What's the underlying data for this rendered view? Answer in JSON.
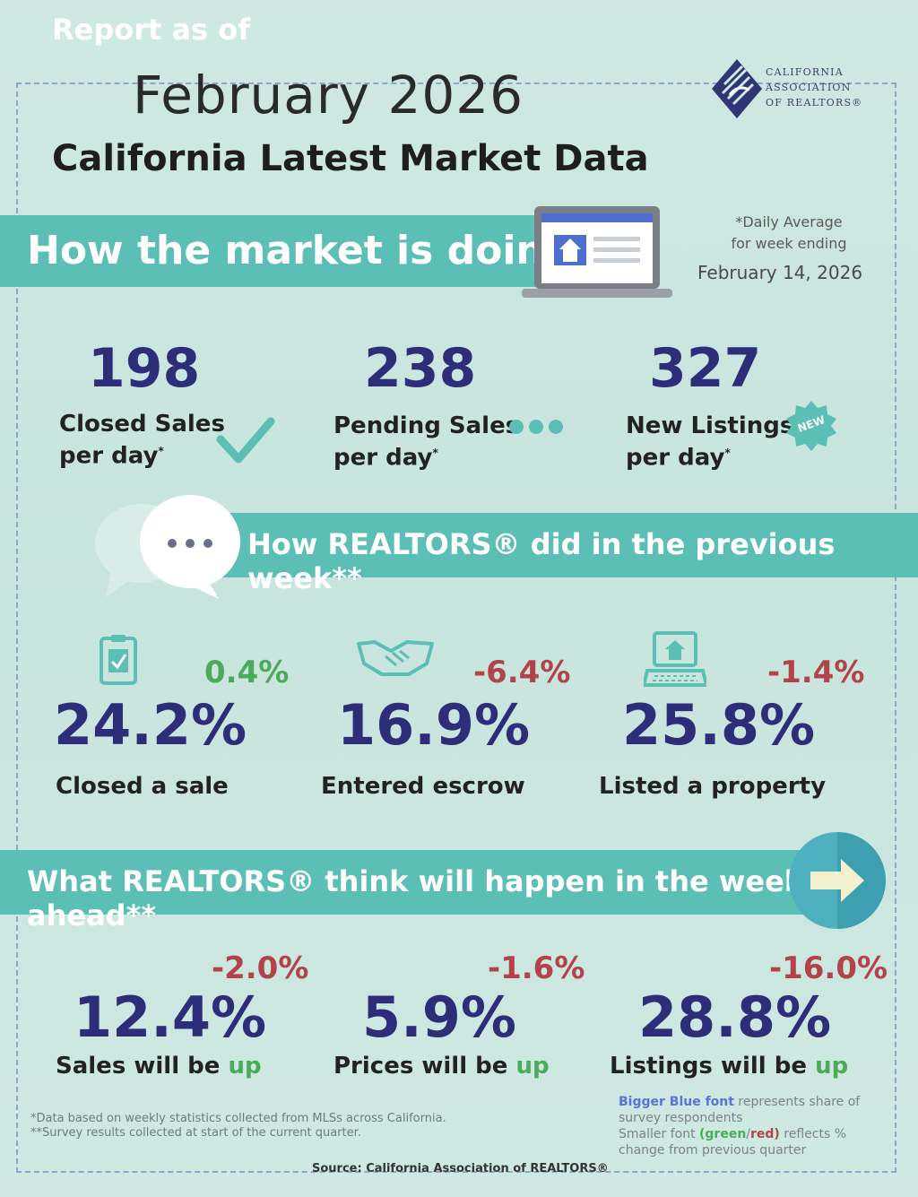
{
  "header": {
    "report_as_of": "Report as of",
    "month": "February 2026",
    "subtitle": "California Latest Market Data",
    "logo_lines": [
      "CALIFORNIA",
      "ASSOCIATION",
      "OF REALTORS®"
    ]
  },
  "section1": {
    "title": "How the market is doing*",
    "note_line1": "*Daily Average",
    "note_line2": "for week ending",
    "note_date": "February 14, 2026",
    "stats": [
      {
        "value": "198",
        "label_line1": "Closed Sales",
        "label_line2": "per day",
        "icon": "checkmark-icon"
      },
      {
        "value": "238",
        "label_line1": "Pending Sales",
        "label_line2": "per day",
        "icon": "dots-icon"
      },
      {
        "value": "327",
        "label_line1": "New Listings",
        "label_line2": "per day",
        "icon": "new-badge-icon",
        "badge": "NEW"
      }
    ]
  },
  "section2": {
    "title": "How REALTORS® did in the previous week**",
    "stats": [
      {
        "value": "24.2%",
        "change": "0.4%",
        "change_color": "#4cab5a",
        "label": "Closed a sale",
        "icon": "clipboard-icon"
      },
      {
        "value": "16.9%",
        "change": "-6.4%",
        "change_color": "#b3434a",
        "label": "Entered escrow",
        "icon": "handshake-icon"
      },
      {
        "value": "25.8%",
        "change": "-1.4%",
        "change_color": "#b3434a",
        "label": "Listed a property",
        "icon": "laptop-house-icon"
      }
    ]
  },
  "section3": {
    "title": "What REALTORS® think will happen in the week ahead**",
    "stats": [
      {
        "value": "12.4%",
        "change": "-2.0%",
        "label_prefix": "Sales will be ",
        "label_suffix": "up"
      },
      {
        "value": "5.9%",
        "change": "-1.6%",
        "label_prefix": "Prices will be ",
        "label_suffix": "up"
      },
      {
        "value": "28.8%",
        "change": "-16.0%",
        "label_prefix": "Listings will be ",
        "label_suffix": "up"
      }
    ]
  },
  "footer": {
    "note1": "*Data based on weekly statistics collected from MLSs across California.",
    "note2": "**Survey results collected at start of the current quarter.",
    "legend_blue": "Bigger Blue font",
    "legend_blue_rest": "represents share of survey respondents",
    "legend_small_a": "Smaller font ",
    "legend_green": "(green",
    "legend_slash": "/",
    "legend_red": "red)",
    "legend_small_b": " reflects % change from previous quarter",
    "source": "Source: California Association of REALTORS®"
  },
  "colors": {
    "band": "#5bbfb6",
    "number_blue": "#2d2d7a",
    "up_green": "#4cab5a",
    "down_red": "#b3434a"
  }
}
